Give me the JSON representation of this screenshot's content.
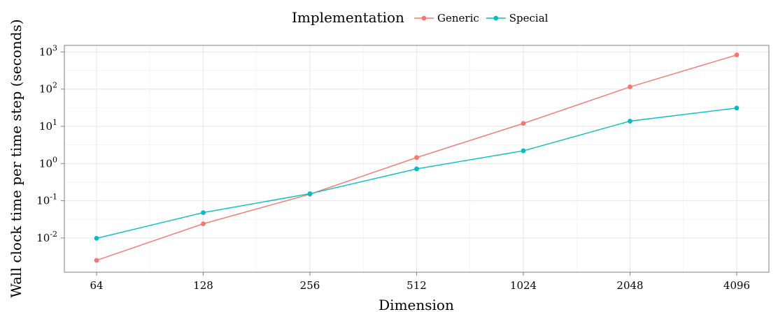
{
  "chart_data": {
    "type": "line",
    "title": "",
    "xlabel": "Dimension",
    "ylabel": "Wall clock time per time step (seconds)",
    "x_scale": "log2",
    "y_scale": "log10",
    "x": [
      64,
      128,
      256,
      512,
      1024,
      2048,
      4096
    ],
    "x_tick_labels": [
      "64",
      "128",
      "256",
      "512",
      "1024",
      "2048",
      "4096"
    ],
    "y_ticks": [
      {
        "value": 0.01,
        "base": "10",
        "exp": "-2"
      },
      {
        "value": 0.1,
        "base": "10",
        "exp": "-1"
      },
      {
        "value": 1,
        "base": "10",
        "exp": "0"
      },
      {
        "value": 10,
        "base": "10",
        "exp": "1"
      },
      {
        "value": 100,
        "base": "10",
        "exp": "2"
      },
      {
        "value": 1000,
        "base": "10",
        "exp": "3"
      }
    ],
    "ylim": [
      0.0012,
      1500
    ],
    "grid": true,
    "legend": {
      "title": "Implementation",
      "position": "top"
    },
    "series": [
      {
        "name": "Generic",
        "color": "#F8766D",
        "values": [
          0.0025,
          0.024,
          0.15,
          1.45,
          12,
          115,
          830
        ]
      },
      {
        "name": "Special",
        "color": "#00BFC4",
        "values": [
          0.0098,
          0.048,
          0.155,
          0.72,
          2.2,
          13.8,
          31
        ]
      }
    ]
  }
}
